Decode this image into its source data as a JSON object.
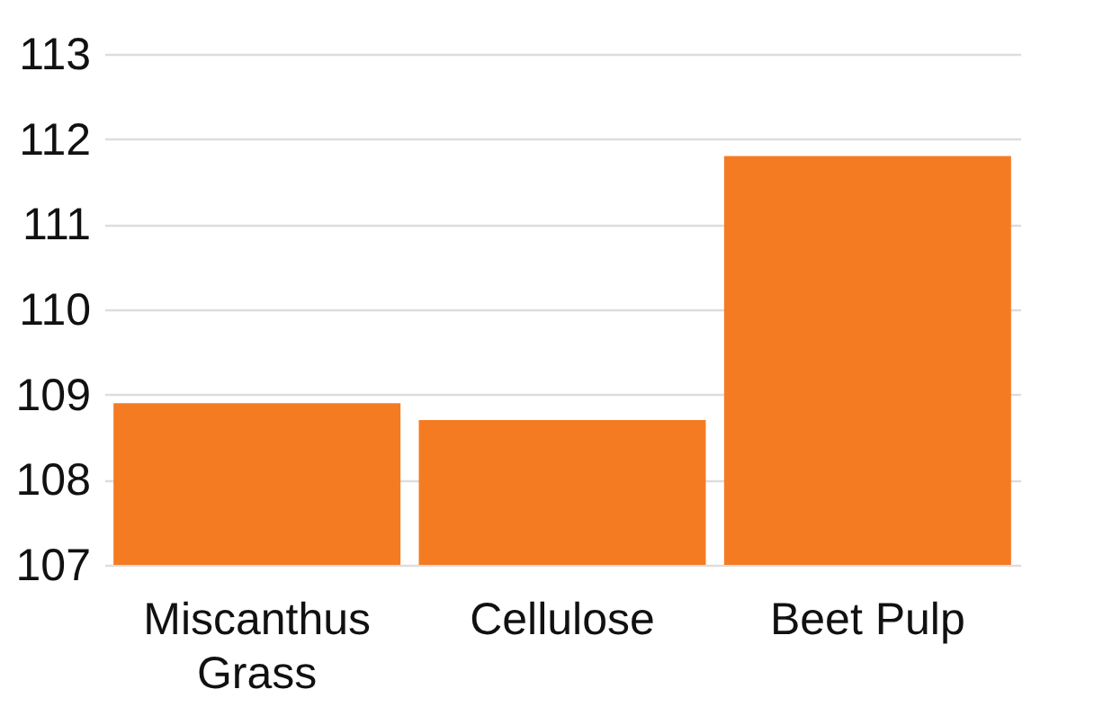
{
  "chart_data": {
    "type": "bar",
    "categories": [
      "Miscanthus Grass",
      "Cellulose",
      "Beet Pulp"
    ],
    "values": [
      108.9,
      108.7,
      111.8
    ],
    "color": "#f47b22",
    "ylim": [
      107,
      113
    ],
    "yticks": [
      107,
      108,
      109,
      110,
      111,
      112,
      113
    ],
    "grid": "y"
  }
}
